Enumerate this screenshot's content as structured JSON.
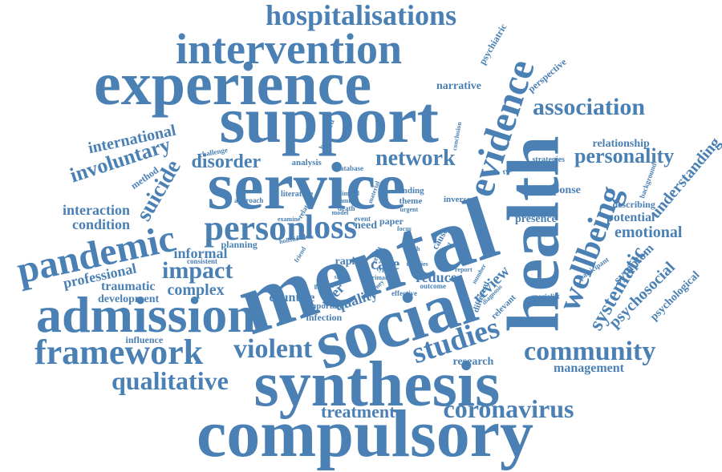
{
  "color": "#4a80b4",
  "words": [
    {
      "text": "compulsory"
    },
    {
      "text": "mental"
    },
    {
      "text": "health"
    },
    {
      "text": "service"
    },
    {
      "text": "support"
    },
    {
      "text": "experience"
    },
    {
      "text": "social"
    },
    {
      "text": "synthesis"
    },
    {
      "text": "admission"
    },
    {
      "text": "intervention"
    },
    {
      "text": "hospitalisations"
    },
    {
      "text": "evidence"
    },
    {
      "text": "wellbeing"
    },
    {
      "text": "pandemic"
    },
    {
      "text": "person"
    },
    {
      "text": "framework"
    },
    {
      "text": "community"
    },
    {
      "text": "studies"
    },
    {
      "text": "coronavirus"
    },
    {
      "text": "association"
    },
    {
      "text": "violent"
    },
    {
      "text": "qualitative"
    },
    {
      "text": "impact"
    },
    {
      "text": "loss"
    },
    {
      "text": "systematic"
    },
    {
      "text": "suicide"
    },
    {
      "text": "involuntary"
    },
    {
      "text": "personality"
    },
    {
      "text": "network"
    },
    {
      "text": "disorder"
    },
    {
      "text": "international"
    },
    {
      "text": "treatment"
    },
    {
      "text": "understanding"
    },
    {
      "text": "psychosocial"
    },
    {
      "text": "emotional"
    },
    {
      "text": "complex"
    },
    {
      "text": "interaction"
    },
    {
      "text": "condition"
    },
    {
      "text": "informal"
    },
    {
      "text": "professional"
    },
    {
      "text": "traumatic"
    },
    {
      "text": "development"
    },
    {
      "text": "psychological"
    },
    {
      "text": "symptom"
    },
    {
      "text": "potential"
    },
    {
      "text": "relationship"
    },
    {
      "text": "management"
    },
    {
      "text": "review"
    },
    {
      "text": "care"
    },
    {
      "text": "reduce"
    },
    {
      "text": "quality"
    },
    {
      "text": "user"
    },
    {
      "text": "countrie"
    },
    {
      "text": "research"
    },
    {
      "text": "narrative"
    },
    {
      "text": "perspective"
    },
    {
      "text": "psychiatric"
    },
    {
      "text": "presence"
    },
    {
      "text": "response"
    },
    {
      "text": "describing"
    },
    {
      "text": "method"
    },
    {
      "text": "influence"
    },
    {
      "text": "planning"
    },
    {
      "text": "infection"
    },
    {
      "text": "important"
    },
    {
      "text": "rapid"
    },
    {
      "text": "analysis"
    },
    {
      "text": "bereaved"
    },
    {
      "text": "challenge"
    },
    {
      "text": "database"
    },
    {
      "text": "finding"
    },
    {
      "text": "theme"
    },
    {
      "text": "literature"
    },
    {
      "text": "approach"
    },
    {
      "text": "resource"
    },
    {
      "text": "strategies"
    },
    {
      "text": "inverse"
    },
    {
      "text": "need"
    },
    {
      "text": "cause"
    },
    {
      "text": "paper"
    },
    {
      "text": "relevant"
    },
    {
      "text": "different"
    },
    {
      "text": "specialist"
    },
    {
      "text": "participant"
    },
    {
      "text": "background"
    },
    {
      "text": "conclusion"
    },
    {
      "text": "limited"
    },
    {
      "text": "family"
    },
    {
      "text": "death"
    },
    {
      "text": "event"
    },
    {
      "text": "effective"
    },
    {
      "text": "outcome"
    },
    {
      "text": "consistent"
    },
    {
      "text": "holistic"
    },
    {
      "text": "public"
    },
    {
      "text": "examine"
    },
    {
      "text": "related"
    },
    {
      "text": "generic"
    },
    {
      "text": "study"
    },
    {
      "text": "primary"
    },
    {
      "text": "type"
    },
    {
      "text": "result"
    },
    {
      "text": "material"
    },
    {
      "text": "urgent"
    },
    {
      "text": "journey"
    },
    {
      "text": "diagnosis"
    },
    {
      "text": "report"
    },
    {
      "text": "number"
    },
    {
      "text": "effect"
    },
    {
      "text": "model"
    },
    {
      "text": "focus"
    },
    {
      "text": "friend"
    },
    {
      "text": "worth"
    },
    {
      "text": "theories"
    }
  ]
}
